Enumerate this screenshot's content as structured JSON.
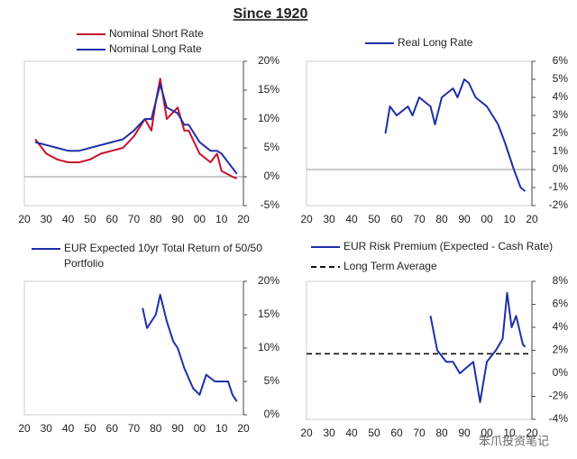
{
  "title": "Since 1920",
  "watermark": "笨爪投资笔记",
  "chart_data": [
    {
      "type": "line",
      "legend": "top-left",
      "y_axis_side": "right",
      "zero_line": true,
      "xlim": [
        1920,
        2020
      ],
      "xticks": [
        {
          "value": 1920,
          "label": "20"
        },
        {
          "value": 1930,
          "label": "30"
        },
        {
          "value": 1940,
          "label": "40"
        },
        {
          "value": 1950,
          "label": "50"
        },
        {
          "value": 1960,
          "label": "60"
        },
        {
          "value": 1970,
          "label": "70"
        },
        {
          "value": 1980,
          "label": "80"
        },
        {
          "value": 1990,
          "label": "90"
        },
        {
          "value": 2000,
          "label": "00"
        },
        {
          "value": 2010,
          "label": "10"
        },
        {
          "value": 2020,
          "label": "20"
        }
      ],
      "ylim": [
        -5,
        20
      ],
      "yticks": [
        {
          "value": -5,
          "label": "-5%"
        },
        {
          "value": 0,
          "label": "0%"
        },
        {
          "value": 5,
          "label": "5%"
        },
        {
          "value": 10,
          "label": "10%"
        },
        {
          "value": 15,
          "label": "15%"
        },
        {
          "value": 20,
          "label": "20%"
        }
      ],
      "x": [
        1925,
        1930,
        1935,
        1940,
        1945,
        1950,
        1955,
        1960,
        1965,
        1970,
        1975,
        1978,
        1980,
        1982,
        1985,
        1990,
        1993,
        1995,
        2000,
        2005,
        2008,
        2010,
        2015,
        2017
      ],
      "series": [
        {
          "name": "Nominal Short Rate",
          "color": "#c8102e",
          "values": [
            6.5,
            4,
            3,
            2.5,
            2.5,
            3,
            4,
            4.5,
            5,
            7,
            10,
            8,
            13,
            17,
            10,
            12,
            8,
            8,
            4,
            2.5,
            4,
            1,
            0,
            -0.3
          ]
        },
        {
          "name": "Nominal Long Rate",
          "color": "#1f2fa8",
          "values": [
            6,
            5.5,
            5,
            4.5,
            4.5,
            5,
            5.5,
            6,
            6.5,
            8,
            10,
            10,
            13,
            16,
            12,
            11,
            9,
            9,
            6,
            4.5,
            4.5,
            4,
            1.5,
            0.5
          ]
        }
      ]
    },
    {
      "type": "line",
      "legend": "top-left",
      "y_axis_side": "right",
      "zero_line": true,
      "xlim": [
        1920,
        2020
      ],
      "xticks": [
        {
          "value": 1920,
          "label": "20"
        },
        {
          "value": 1930,
          "label": "30"
        },
        {
          "value": 1940,
          "label": "40"
        },
        {
          "value": 1950,
          "label": "50"
        },
        {
          "value": 1960,
          "label": "60"
        },
        {
          "value": 1970,
          "label": "70"
        },
        {
          "value": 1980,
          "label": "80"
        },
        {
          "value": 1990,
          "label": "90"
        },
        {
          "value": 2000,
          "label": "00"
        },
        {
          "value": 2010,
          "label": "10"
        },
        {
          "value": 2020,
          "label": "20"
        }
      ],
      "ylim": [
        -2,
        6
      ],
      "yticks": [
        {
          "value": -2,
          "label": "-2%"
        },
        {
          "value": -1,
          "label": "-1%"
        },
        {
          "value": 0,
          "label": "0%"
        },
        {
          "value": 1,
          "label": "1%"
        },
        {
          "value": 2,
          "label": "2%"
        },
        {
          "value": 3,
          "label": "3%"
        },
        {
          "value": 4,
          "label": "4%"
        },
        {
          "value": 5,
          "label": "5%"
        },
        {
          "value": 6,
          "label": "6%"
        }
      ],
      "x": [
        1955,
        1957,
        1960,
        1965,
        1967,
        1970,
        1975,
        1977,
        1980,
        1985,
        1987,
        1990,
        1992,
        1995,
        2000,
        2005,
        2008,
        2012,
        2015,
        2017
      ],
      "series": [
        {
          "name": "Real Long Rate",
          "color": "#1f2fa8",
          "values": [
            2,
            3.5,
            3,
            3.5,
            3,
            4,
            3.5,
            2.5,
            4,
            4.5,
            4,
            5,
            4.8,
            4,
            3.5,
            2.5,
            1.5,
            0,
            -1,
            -1.2
          ]
        }
      ]
    },
    {
      "type": "line",
      "legend": "top-left",
      "y_axis_side": "right",
      "zero_line": false,
      "xlim": [
        1920,
        2020
      ],
      "xticks": [
        {
          "value": 1920,
          "label": "20"
        },
        {
          "value": 1930,
          "label": "30"
        },
        {
          "value": 1940,
          "label": "40"
        },
        {
          "value": 1950,
          "label": "50"
        },
        {
          "value": 1960,
          "label": "60"
        },
        {
          "value": 1970,
          "label": "70"
        },
        {
          "value": 1980,
          "label": "80"
        },
        {
          "value": 1990,
          "label": "90"
        },
        {
          "value": 2000,
          "label": "00"
        },
        {
          "value": 2010,
          "label": "10"
        },
        {
          "value": 2020,
          "label": "20"
        }
      ],
      "ylim": [
        0,
        20
      ],
      "yticks": [
        {
          "value": 0,
          "label": "0%"
        },
        {
          "value": 5,
          "label": "5%"
        },
        {
          "value": 10,
          "label": "10%"
        },
        {
          "value": 15,
          "label": "15%"
        },
        {
          "value": 20,
          "label": "20%"
        }
      ],
      "x": [
        1974,
        1976,
        1980,
        1982,
        1985,
        1988,
        1990,
        1993,
        1997,
        2000,
        2003,
        2007,
        2010,
        2013,
        2015,
        2017
      ],
      "series": [
        {
          "name": "EUR Expected 10yr Total Return of 50/50 Portfolio",
          "color": "#1f2fa8",
          "values": [
            16,
            13,
            15,
            18,
            14,
            11,
            10,
            7,
            4,
            3,
            6,
            5,
            5,
            5,
            3,
            2
          ]
        }
      ]
    },
    {
      "type": "line",
      "legend": "top-left",
      "y_axis_side": "right",
      "zero_line": false,
      "xlim": [
        1920,
        2020
      ],
      "xticks": [
        {
          "value": 1920,
          "label": "20"
        },
        {
          "value": 1930,
          "label": "30"
        },
        {
          "value": 1940,
          "label": "40"
        },
        {
          "value": 1950,
          "label": "50"
        },
        {
          "value": 1960,
          "label": "60"
        },
        {
          "value": 1970,
          "label": "70"
        },
        {
          "value": 1980,
          "label": "80"
        },
        {
          "value": 1990,
          "label": "90"
        },
        {
          "value": 2000,
          "label": "00"
        },
        {
          "value": 2010,
          "label": "10"
        },
        {
          "value": 2020,
          "label": "20"
        }
      ],
      "ylim": [
        -4,
        8
      ],
      "yticks": [
        {
          "value": -4,
          "label": "-4%"
        },
        {
          "value": -2,
          "label": "-2%"
        },
        {
          "value": 0,
          "label": "0%"
        },
        {
          "value": 2,
          "label": "2%"
        },
        {
          "value": 4,
          "label": "4%"
        },
        {
          "value": 6,
          "label": "6%"
        },
        {
          "value": 8,
          "label": "8%"
        }
      ],
      "x": [
        1975,
        1978,
        1982,
        1985,
        1988,
        1991,
        1994,
        1997,
        2000,
        2004,
        2007,
        2009,
        2011,
        2013,
        2016,
        2017
      ],
      "series": [
        {
          "name": "EUR Risk Premium (Expected - Cash Rate)",
          "color": "#1f2fa8",
          "values": [
            5,
            2,
            1,
            1,
            0,
            0.5,
            1,
            -2.5,
            1,
            2,
            3,
            7,
            4,
            5,
            2.5,
            2.3
          ]
        }
      ],
      "reference_line": {
        "name": "Long Term Average",
        "value": 1.7,
        "color": "#111",
        "style": "dashed"
      }
    }
  ]
}
